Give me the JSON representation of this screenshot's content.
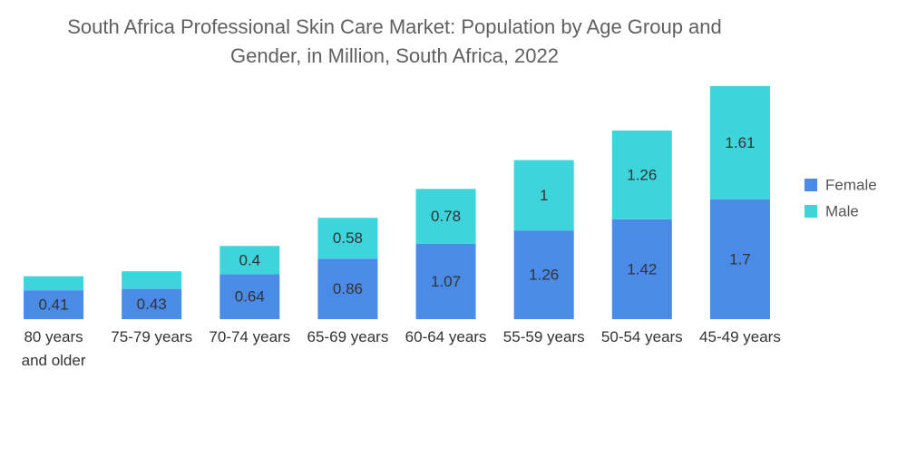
{
  "chart_data": {
    "type": "bar",
    "stacked": true,
    "title_lines": [
      "South Africa Professional Skin Care Market: Population by Age Group and",
      "Gender, in Million, South Africa, 2022"
    ],
    "categories": [
      [
        "80 years",
        "and older"
      ],
      [
        "75-79 years"
      ],
      [
        "70-74 years"
      ],
      [
        "65-69 years"
      ],
      [
        "60-64 years"
      ],
      [
        "55-59 years"
      ],
      [
        "50-54 years"
      ],
      [
        "45-49 years"
      ]
    ],
    "series": [
      {
        "name": "Female",
        "color": "#4a8be8",
        "values": [
          0.41,
          0.43,
          0.64,
          0.86,
          1.07,
          1.26,
          1.42,
          1.7
        ],
        "labels": [
          "0.41",
          "0.43",
          "0.64",
          "0.86",
          "1.07",
          "1.26",
          "1.42",
          "1.7"
        ]
      },
      {
        "name": "Male",
        "color": "#3dd4dc",
        "values": [
          0.2,
          0.25,
          0.4,
          0.58,
          0.78,
          1.0,
          1.26,
          1.61
        ],
        "labels": [
          "",
          "",
          "0.4",
          "0.58",
          "0.78",
          "1",
          "1.26",
          "1.61"
        ]
      }
    ],
    "ylim": [
      0,
      3.31
    ],
    "grid": false,
    "legend_position": "right"
  }
}
